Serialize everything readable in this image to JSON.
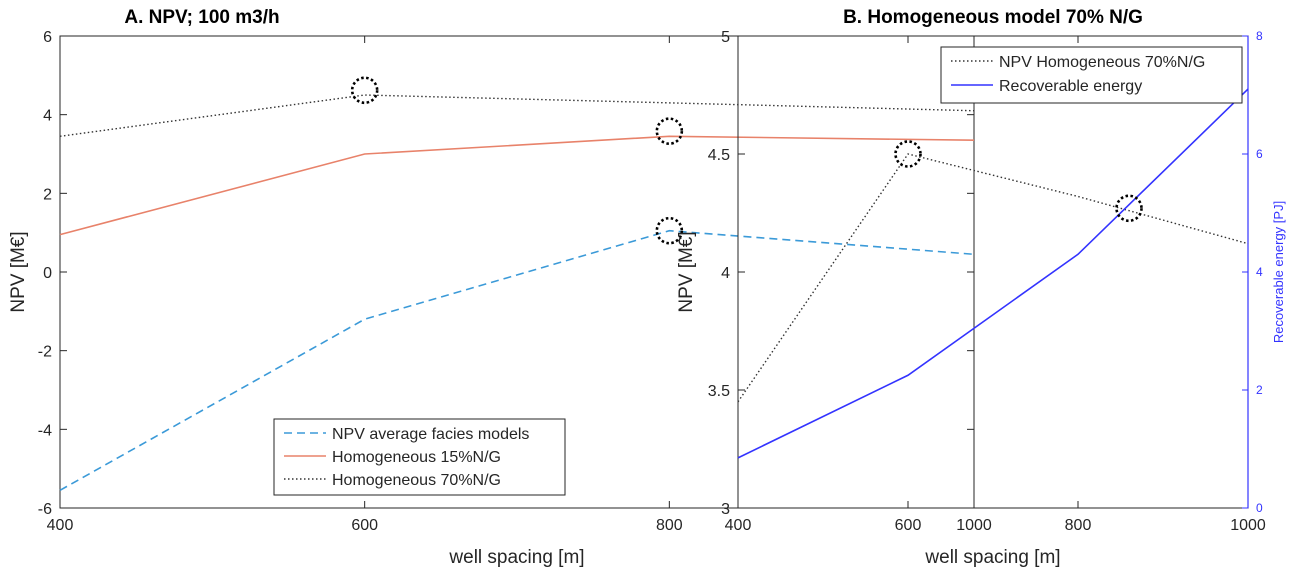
{
  "chart_data": [
    {
      "type": "line",
      "title": "A. NPV; 100 m3/h",
      "xlabel": "well spacing [m]",
      "ylabel": "NPV [M€]",
      "xlim": [
        400,
        1000
      ],
      "ylim": [
        -6,
        6
      ],
      "xticks": [
        "400",
        "600",
        "800",
        "1000"
      ],
      "yticks": [
        "-6",
        "-4",
        "-2",
        "0",
        "2",
        "4",
        "6"
      ],
      "x": [
        400,
        600,
        800,
        1000
      ],
      "series": [
        {
          "name": "NPV average facies models",
          "values": [
            -5.55,
            -1.2,
            1.05,
            0.45
          ],
          "color": "#3b9ad8",
          "style": "dashed"
        },
        {
          "name": "Homogeneous 15%N/G",
          "values": [
            0.95,
            3.0,
            3.45,
            3.35
          ],
          "color": "#e8826a",
          "style": "solid"
        },
        {
          "name": "Homogeneous 70%N/G",
          "values": [
            3.45,
            4.5,
            4.3,
            4.1
          ],
          "color": "#333333",
          "style": "dotted"
        }
      ],
      "markers": [
        {
          "x": 600,
          "y": 4.62
        },
        {
          "x": 800,
          "y": 3.58
        },
        {
          "x": 800,
          "y": 1.05
        }
      ],
      "legend_position": "bottom-right",
      "grid": false
    },
    {
      "type": "line",
      "title": "B. Homogeneous model 70% N/G",
      "xlabel": "well spacing [m]",
      "ylabel": "NPV [M€]",
      "y2label": "Recoverable energy [PJ]",
      "xlim": [
        400,
        1000
      ],
      "ylim": [
        3,
        5
      ],
      "y2lim": [
        0,
        8
      ],
      "xticks": [
        "400",
        "600",
        "800",
        "1000"
      ],
      "yticks": [
        "3",
        "3.5",
        "4",
        "4.5",
        "5"
      ],
      "y2ticks": [
        "0",
        "2",
        "4",
        "6",
        "8"
      ],
      "x": [
        400,
        600,
        800,
        1000
      ],
      "series": [
        {
          "name": "NPV Homogeneous 70%N/G",
          "values": [
            3.45,
            4.5,
            4.32,
            4.12
          ],
          "axis": "left",
          "color": "#333333",
          "style": "dotted"
        },
        {
          "name": "Recoverable energy",
          "values": [
            0.85,
            2.25,
            4.3,
            7.1
          ],
          "axis": "right",
          "color": "#3333ff",
          "style": "solid"
        }
      ],
      "markers": [
        {
          "x": 600,
          "y": 4.5
        },
        {
          "x": 860,
          "y": 4.27
        }
      ],
      "legend_position": "top-right",
      "grid": false
    }
  ]
}
